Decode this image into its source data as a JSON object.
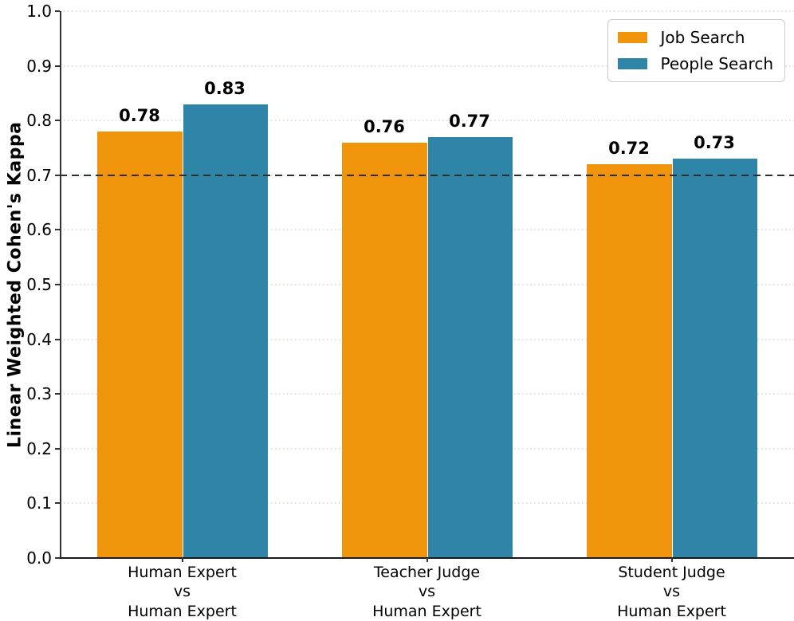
{
  "chart_data": {
    "type": "bar",
    "title": "",
    "xlabel": "",
    "ylabel": "Linear Weighted Cohen's Kappa",
    "ylim": [
      0.0,
      1.0
    ],
    "ytick_labels": [
      "0.0",
      "0.1",
      "0.2",
      "0.3",
      "0.4",
      "0.5",
      "0.6",
      "0.7",
      "0.8",
      "0.9",
      "1.0"
    ],
    "grid": "horizontal dotted",
    "gridline_color": "#dedede",
    "reference_line": {
      "y": 0.7,
      "style": "dashed",
      "color": "#2e2e2e"
    },
    "categories": [
      "Human Expert\nvs\nHuman Expert",
      "Teacher Judge\nvs\nHuman Expert",
      "Student Judge\nvs\nHuman Expert"
    ],
    "series": [
      {
        "name": "Job Search",
        "color": "#F0940B",
        "values": [
          0.78,
          0.76,
          0.72
        ]
      },
      {
        "name": "People Search",
        "color": "#2E85A8",
        "values": [
          0.83,
          0.77,
          0.73
        ]
      }
    ],
    "bar_value_labels": [
      [
        "0.78",
        "0.76",
        "0.72"
      ],
      [
        "0.83",
        "0.77",
        "0.73"
      ]
    ],
    "legend_position": "upper right"
  },
  "colors": {
    "background": "#ffffff",
    "axis": "#333333",
    "text": "#000000",
    "legend_border": "#cccccc"
  }
}
